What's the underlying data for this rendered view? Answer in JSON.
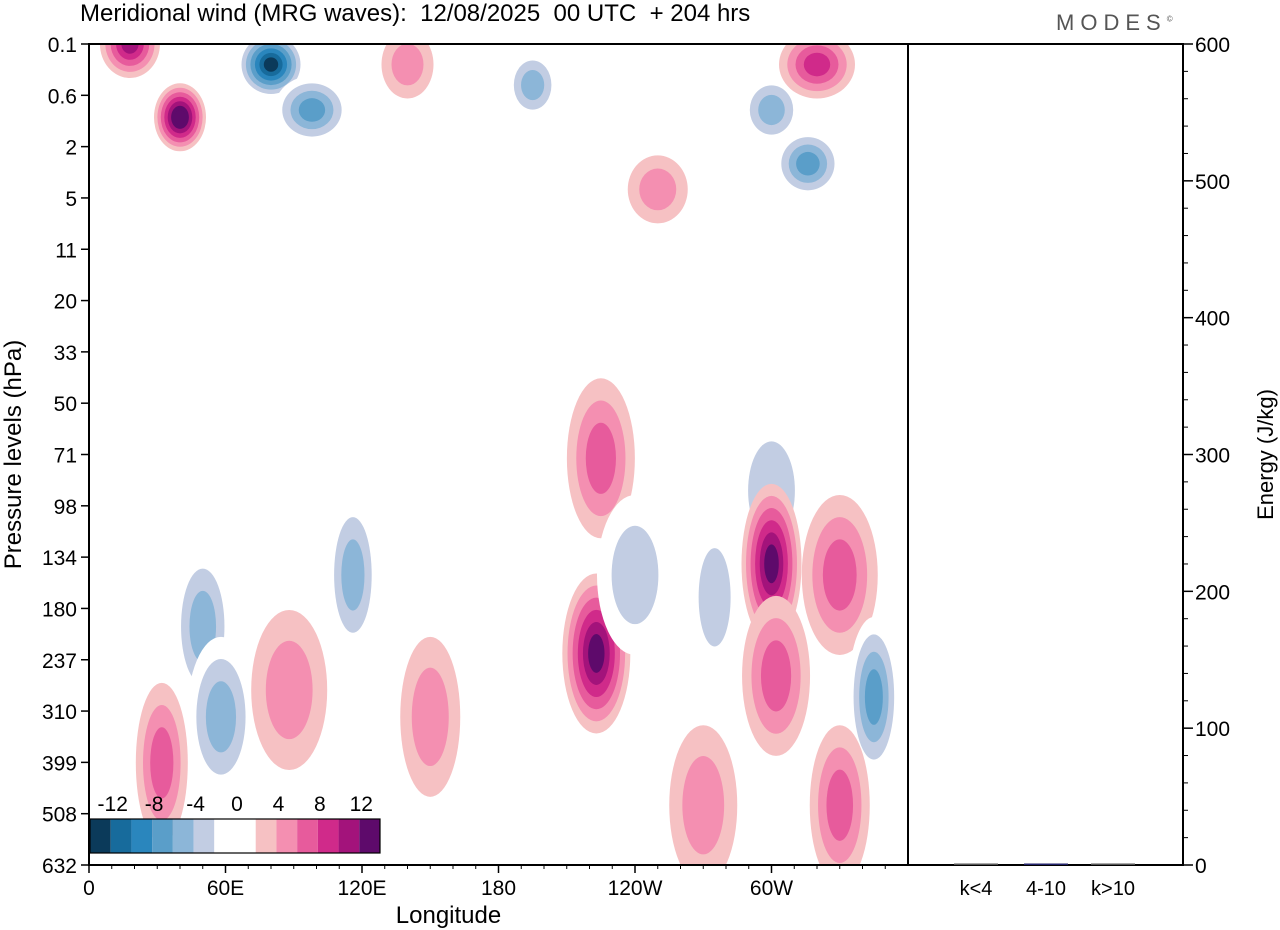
{
  "title": "Meridional wind (MRG waves):  12/08/2025  00 UTC  + 204 hrs",
  "logo": "MODES",
  "logo_mark": "©",
  "chart_data": [
    {
      "type": "heatmap",
      "title": "Meridional wind (MRG waves)",
      "xlabel": "Longitude",
      "ylabel": "Pressure levels (hPa)",
      "x_ticks": [
        "0",
        "60E",
        "120E",
        "180",
        "120W",
        "60W"
      ],
      "x_tick_values": [
        0,
        60,
        120,
        180,
        240,
        300
      ],
      "xlim": [
        0,
        360
      ],
      "y_ticks": [
        "0.1",
        "0.6",
        "2",
        "5",
        "11",
        "20",
        "33",
        "50",
        "71",
        "98",
        "134",
        "180",
        "237",
        "310",
        "399",
        "508",
        "632"
      ],
      "colorbar": {
        "labels": [
          "-12",
          "-8",
          "-4",
          "0",
          "4",
          "8",
          "12"
        ],
        "levels": [
          -14,
          -12,
          -10,
          -8,
          -6,
          -4,
          -2,
          2,
          4,
          6,
          8,
          10,
          12,
          14
        ],
        "colors": [
          "#0b3a5a",
          "#176b9c",
          "#2a86bd",
          "#5a9ec9",
          "#8cb6d8",
          "#c2cde3",
          "#ffffff",
          "#ffffff",
          "#f6c1c3",
          "#f48fb1",
          "#e75b9c",
          "#d02a8a",
          "#a3137b",
          "#5e0a6b"
        ]
      },
      "features": [
        {
          "lon": 40,
          "lev": 1.2,
          "value": 14
        },
        {
          "lon": 18,
          "lev": 0.1,
          "value": 10
        },
        {
          "lon": 80,
          "lev": 0.3,
          "value": -14
        },
        {
          "lon": 98,
          "lev": 1.0,
          "value": -8
        },
        {
          "lon": 195,
          "lev": 0.5,
          "value": -6
        },
        {
          "lon": 300,
          "lev": 1.0,
          "value": -6
        },
        {
          "lon": 316,
          "lev": 3.0,
          "value": -8
        },
        {
          "lon": 320,
          "lev": 0.3,
          "value": 8
        },
        {
          "lon": 140,
          "lev": 0.3,
          "value": 5
        },
        {
          "lon": 250,
          "lev": 4.5,
          "value": 5
        },
        {
          "lon": 225,
          "lev": 73,
          "value": 6
        },
        {
          "lon": 300,
          "lev": 90,
          "value": -5
        },
        {
          "lon": 32,
          "lev": 400,
          "value": 6
        },
        {
          "lon": 50,
          "lev": 200,
          "value": -7
        },
        {
          "lon": 58,
          "lev": 320,
          "value": -6
        },
        {
          "lon": 88,
          "lev": 280,
          "value": 5
        },
        {
          "lon": 116,
          "lev": 150,
          "value": -6
        },
        {
          "lon": 150,
          "lev": 320,
          "value": 5
        },
        {
          "lon": 223,
          "lev": 230,
          "value": 12
        },
        {
          "lon": 240,
          "lev": 150,
          "value": -5
        },
        {
          "lon": 275,
          "lev": 170,
          "value": -5
        },
        {
          "lon": 300,
          "lev": 140,
          "value": 12
        },
        {
          "lon": 302,
          "lev": 260,
          "value": 7
        },
        {
          "lon": 330,
          "lev": 150,
          "value": 6
        },
        {
          "lon": 345,
          "lev": 290,
          "value": -9
        },
        {
          "lon": 330,
          "lev": 490,
          "value": 6
        },
        {
          "lon": 270,
          "lev": 490,
          "value": 5
        }
      ]
    },
    {
      "type": "bar",
      "categories": [
        "k<4",
        "4-10",
        "k>10"
      ],
      "values": [
        0,
        1,
        0
      ],
      "ylabel": "Energy (J/kg)",
      "ylim": [
        0,
        600
      ],
      "y_ticks": [
        "0",
        "100",
        "200",
        "300",
        "400",
        "500",
        "600"
      ]
    }
  ]
}
